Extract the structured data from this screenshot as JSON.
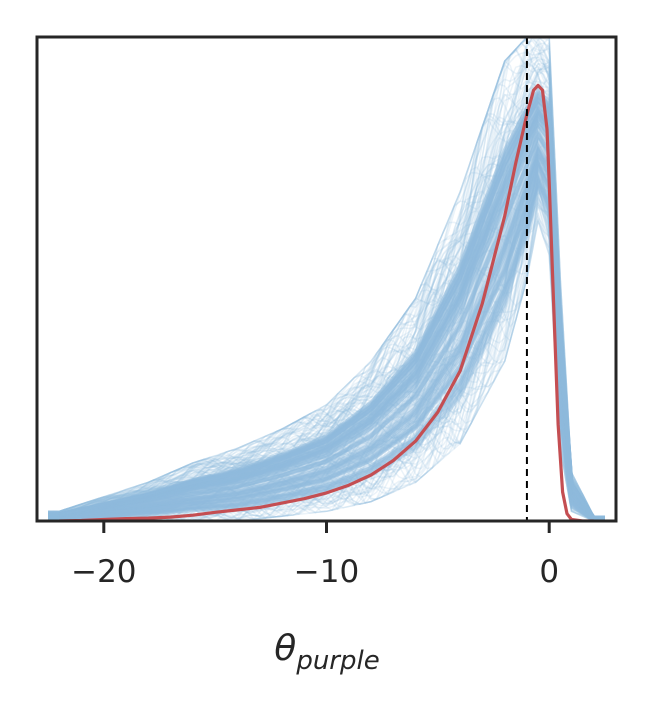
{
  "chart_data": {
    "type": "line",
    "xlabel": {
      "symbol": "θ",
      "subscript": "purple"
    },
    "xlim": [
      -23,
      3
    ],
    "ylim": [
      0,
      1
    ],
    "x_ticks": [
      -20,
      -10,
      0
    ],
    "x_tick_labels": [
      "−20",
      "−10",
      "0"
    ],
    "y_ticks_shown": false,
    "grid": false,
    "legend": "none",
    "reference_line": {
      "x": -1,
      "style": "dashed",
      "color": "#000000"
    },
    "series": [
      {
        "role": "posterior-sample-density-curves",
        "color": "#8fbbdd",
        "count_shown": "many (semi-transparent)",
        "envelope_x": [
          -22,
          -20,
          -18,
          -16,
          -14,
          -12,
          -10,
          -8,
          -6,
          -4,
          -2,
          -1,
          -0.5,
          0,
          0.5,
          1,
          2
        ],
        "envelope_lower": [
          0,
          0,
          0,
          0,
          0,
          0.01,
          0.02,
          0.04,
          0.08,
          0.16,
          0.33,
          0.5,
          0.62,
          0.55,
          0.15,
          0.02,
          0
        ],
        "envelope_upper": [
          0.02,
          0.05,
          0.08,
          0.12,
          0.15,
          0.19,
          0.24,
          0.33,
          0.46,
          0.68,
          0.95,
          1.0,
          1.0,
          1.0,
          0.5,
          0.1,
          0.01
        ]
      },
      {
        "role": "mean-density",
        "color": "#c44e52",
        "x": [
          -22,
          -21,
          -20,
          -19,
          -18,
          -17,
          -16,
          -15,
          -14,
          -13,
          -12,
          -11,
          -10,
          -9,
          -8,
          -7,
          -6,
          -5,
          -4,
          -3,
          -2,
          -1.5,
          -1,
          -0.7,
          -0.5,
          -0.3,
          -0.1,
          0,
          0.2,
          0.4,
          0.6,
          0.8,
          1.0,
          1.5,
          2.0
        ],
        "y": [
          0,
          0.001,
          0.003,
          0.005,
          0.006,
          0.008,
          0.012,
          0.018,
          0.023,
          0.028,
          0.037,
          0.046,
          0.058,
          0.074,
          0.095,
          0.125,
          0.165,
          0.225,
          0.31,
          0.45,
          0.63,
          0.74,
          0.84,
          0.89,
          0.9,
          0.89,
          0.81,
          0.7,
          0.45,
          0.2,
          0.06,
          0.015,
          0.003,
          0,
          0
        ]
      }
    ]
  }
}
